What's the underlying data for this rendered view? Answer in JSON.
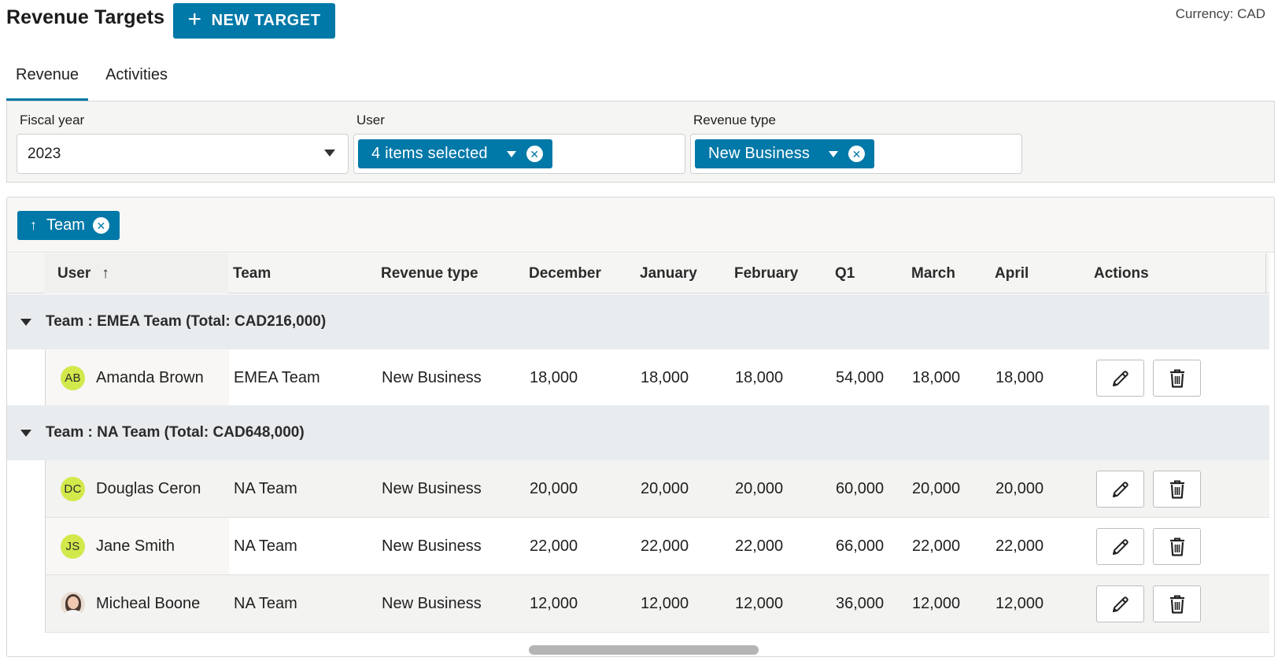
{
  "header": {
    "title": "Revenue Targets",
    "new_target_label": "NEW TARGET",
    "currency": "Currency: CAD"
  },
  "tabs": [
    {
      "label": "Revenue",
      "active": true
    },
    {
      "label": "Activities",
      "active": false
    }
  ],
  "filters": {
    "fiscal_year": {
      "label": "Fiscal year",
      "value": "2023"
    },
    "user": {
      "label": "User",
      "value": "4 items selected"
    },
    "revenue_type": {
      "label": "Revenue type",
      "value": "New Business"
    }
  },
  "grouping": {
    "chip_label": "Team"
  },
  "table": {
    "columns": [
      "User",
      "Team",
      "Revenue type",
      "December",
      "January",
      "February",
      "Q1",
      "March",
      "April",
      "Actions"
    ],
    "groups": [
      {
        "label": "Team : EMEA Team (Total: CAD216,000)",
        "rows": [
          {
            "initials": "AB",
            "user": "Amanda Brown",
            "team": "EMEA Team",
            "revenue_type": "New Business",
            "december": "18,000",
            "january": "18,000",
            "february": "18,000",
            "q1": "54,000",
            "march": "18,000",
            "april": "18,000"
          }
        ]
      },
      {
        "label": "Team : NA Team (Total: CAD648,000)",
        "rows": [
          {
            "initials": "DC",
            "user": "Douglas Ceron",
            "team": "NA Team",
            "revenue_type": "New Business",
            "december": "20,000",
            "january": "20,000",
            "february": "20,000",
            "q1": "60,000",
            "march": "20,000",
            "april": "20,000"
          },
          {
            "initials": "JS",
            "user": "Jane Smith",
            "team": "NA Team",
            "revenue_type": "New Business",
            "december": "22,000",
            "january": "22,000",
            "february": "22,000",
            "q1": "66,000",
            "march": "22,000",
            "april": "22,000"
          },
          {
            "initials": "",
            "user": "Micheal Boone",
            "team": "NA Team",
            "revenue_type": "New Business",
            "december": "12,000",
            "january": "12,000",
            "february": "12,000",
            "q1": "36,000",
            "march": "12,000",
            "april": "12,000"
          }
        ]
      }
    ]
  },
  "icons": {
    "plus": "plus-icon",
    "dropdown": "caret-down-icon",
    "clear": "clear-circle-icon",
    "sort": "arrow-up-icon",
    "edit": "pencil-icon",
    "delete": "trash-icon"
  },
  "colors": {
    "accent": "#0078a8",
    "avatar": "#d3e84b",
    "group_row": "#e9ecee"
  }
}
